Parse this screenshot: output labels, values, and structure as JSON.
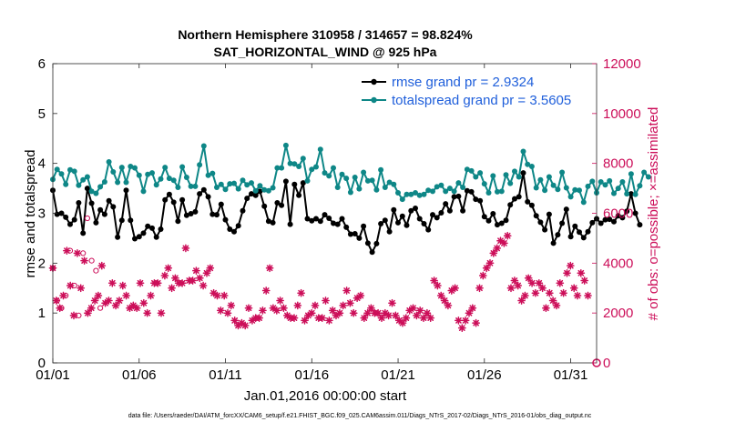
{
  "chart_data": {
    "type": "line",
    "title": "Northern Hemisphere 310958 / 314657 = 98.824%",
    "subtitle": "SAT_HORIZONTAL_WIND @ 925 hPa",
    "xlabel": "Jan.01,2016 00:00:00 start",
    "ylabel": "rmse and totalspread",
    "y2label": "# of obs: o=possible; ×=assimilated",
    "footer": "data file: /Users/raeder/DAI/ATM_forcXX/CAM6_setup/f.e21.FHIST_BGC.f09_025.CAM6assim.011/Diags_NTrS_2017-02/Diags_NTrS_2016-01/obs_diag_output.nc",
    "xlim": [
      0,
      31.5
    ],
    "ylim": [
      0,
      6
    ],
    "y2lim": [
      0,
      12000
    ],
    "xticks": [
      0,
      5,
      10,
      15,
      20,
      25,
      30
    ],
    "xtick_labels": [
      "01/01",
      "01/06",
      "01/11",
      "01/16",
      "01/21",
      "01/26",
      "01/31"
    ],
    "yticks": [
      0,
      1,
      2,
      3,
      4,
      5,
      6
    ],
    "ytick_labels": [
      "0",
      "1",
      "2",
      "3",
      "4",
      "5",
      "6"
    ],
    "y2ticks": [
      0,
      2000,
      4000,
      6000,
      8000,
      10000,
      12000
    ],
    "y2tick_labels": [
      "0",
      "2000",
      "4000",
      "6000",
      "8000",
      "10000",
      "12000"
    ],
    "grid": false,
    "legend_position": "top-right",
    "series": [
      {
        "name": "rmse grand pr = 2.9324",
        "axis": "left",
        "color": "#000000",
        "values": [
          3.46,
          2.98,
          3.0,
          2.92,
          2.78,
          2.87,
          3.21,
          2.6,
          3.5,
          3.2,
          2.81,
          3.07,
          2.98,
          3.25,
          3.13,
          2.52,
          2.86,
          3.46,
          2.86,
          2.49,
          2.53,
          2.6,
          2.74,
          2.7,
          2.52,
          2.68,
          3.27,
          3.38,
          3.22,
          2.84,
          3.27,
          2.96,
          2.99,
          3.03,
          3.39,
          3.47,
          3.33,
          2.98,
          2.97,
          3.18,
          2.87,
          2.68,
          2.63,
          2.75,
          3.05,
          3.3,
          3.39,
          3.36,
          3.44,
          3.14,
          2.84,
          2.81,
          3.21,
          3.16,
          3.64,
          2.78,
          3.58,
          3.36,
          3.61,
          2.89,
          2.85,
          2.89,
          2.84,
          2.97,
          2.9,
          2.8,
          2.78,
          2.89,
          2.72,
          2.58,
          2.59,
          2.5,
          2.74,
          2.4,
          2.22,
          2.39,
          2.79,
          2.86,
          2.63,
          3.07,
          2.81,
          2.94,
          2.76,
          3.05,
          3.1,
          2.89,
          2.79,
          2.67,
          2.97,
          2.91,
          3.01,
          3.19,
          3.05,
          3.33,
          3.34,
          3.05,
          3.45,
          3.43,
          3.28,
          3.25,
          2.93,
          2.85,
          2.99,
          2.77,
          2.8,
          2.86,
          3.17,
          3.29,
          3.33,
          3.81,
          3.23,
          3.16,
          2.95,
          2.82,
          2.67,
          2.98,
          2.4,
          2.57,
          2.8,
          3.08,
          2.53,
          2.74,
          2.62,
          2.51,
          2.63,
          2.81,
          2.89,
          2.8,
          2.87,
          2.88,
          2.83,
          2.95,
          2.91,
          3.04,
          3.39,
          3.0,
          2.77
        ]
      },
      {
        "name": "totalspread grand pr = 3.5605",
        "axis": "left",
        "color": "#0e8787",
        "values": [
          3.68,
          3.88,
          3.79,
          3.58,
          3.87,
          3.84,
          3.56,
          3.67,
          3.73,
          3.44,
          3.4,
          3.53,
          3.63,
          4.03,
          3.83,
          3.62,
          3.92,
          3.62,
          3.94,
          3.91,
          3.76,
          3.44,
          3.78,
          3.81,
          3.57,
          3.69,
          3.92,
          3.7,
          3.66,
          3.52,
          3.93,
          3.72,
          3.54,
          3.54,
          3.97,
          4.35,
          3.76,
          3.8,
          3.52,
          3.58,
          3.48,
          3.59,
          3.6,
          3.49,
          3.66,
          3.57,
          3.61,
          3.45,
          3.55,
          3.47,
          3.45,
          3.51,
          3.91,
          3.91,
          4.36,
          4.0,
          3.99,
          3.94,
          4.1,
          3.65,
          3.88,
          3.93,
          4.28,
          3.81,
          3.75,
          3.91,
          3.52,
          3.78,
          3.7,
          3.42,
          3.72,
          3.49,
          3.82,
          3.65,
          3.66,
          3.47,
          3.87,
          3.52,
          3.62,
          3.58,
          3.41,
          3.28,
          3.38,
          3.38,
          3.41,
          3.36,
          3.38,
          3.46,
          3.44,
          3.53,
          3.56,
          3.44,
          3.5,
          3.44,
          3.61,
          3.52,
          3.88,
          3.85,
          3.73,
          3.81,
          3.59,
          3.41,
          3.75,
          3.43,
          3.44,
          3.77,
          3.6,
          3.84,
          3.73,
          4.24,
          3.98,
          3.94,
          3.51,
          3.67,
          3.46,
          3.73,
          3.56,
          3.48,
          3.82,
          3.51,
          3.33,
          3.47,
          3.46,
          3.22,
          3.54,
          3.64,
          3.41,
          3.63,
          3.57,
          3.65,
          3.4,
          3.5,
          3.63,
          3.39,
          3.79,
          3.38,
          3.55,
          3.82,
          3.73
        ]
      },
      {
        "name": "",
        "axis": "right",
        "color": "#cc0e59",
        "marker": "asterisk",
        "values": [
          3800,
          2500,
          2200,
          2700,
          4500,
          3100,
          1900,
          4400,
          3000,
          4100,
          2000,
          2200,
          2500,
          2700,
          3900,
          2400,
          2500,
          3200,
          2300,
          2500,
          3100,
          2700,
          2200,
          2300,
          2200,
          3200,
          2400,
          2000,
          2700,
          3200,
          3200,
          2000,
          3500,
          3800,
          3000,
          3400,
          3200,
          3200,
          4600,
          3300,
          3300,
          3700,
          3400,
          3100,
          3600,
          3800,
          2800,
          2700,
          2100,
          2700,
          2000,
          2300,
          1700,
          1500,
          1600,
          1500,
          2200,
          1700,
          1800,
          1800,
          2100,
          2900,
          3800,
          2200,
          2100,
          2500,
          2200,
          1900,
          1800,
          1800,
          2300,
          2800,
          1700,
          1900,
          2000,
          2300,
          1800,
          1800,
          2500,
          1700,
          2100,
          1900,
          2000,
          2300,
          2900,
          2400,
          2000,
          2600,
          2700,
          1800,
          2000,
          2200,
          2000,
          2000,
          1800,
          2000,
          1900,
          2400,
          1900,
          1700,
          1600,
          1800,
          2100,
          2200,
          1900,
          2100,
          1800,
          2000,
          1800,
          3300,
          3100,
          2700,
          2500,
          2300,
          2900,
          3000,
          1700,
          1400,
          1700,
          2000,
          2200,
          1600,
          3000,
          3500,
          3800,
          4000,
          4400,
          4600,
          4900,
          4800,
          5100,
          3000,
          3300,
          3100,
          2500,
          2700,
          3400,
          3200,
          2800,
          3200,
          3000,
          2200,
          2800,
          2500,
          2300,
          3200,
          2800,
          3600,
          3900,
          3000,
          2700,
          3600,
          3300,
          2700
        ]
      },
      {
        "name": "",
        "axis": "right",
        "color": "#cc0e59",
        "marker": "circle",
        "values": [
          3800,
          2500,
          2200,
          2700,
          4500,
          3100,
          1900,
          4400,
          5800,
          4100,
          3700,
          2200
        ]
      }
    ]
  }
}
